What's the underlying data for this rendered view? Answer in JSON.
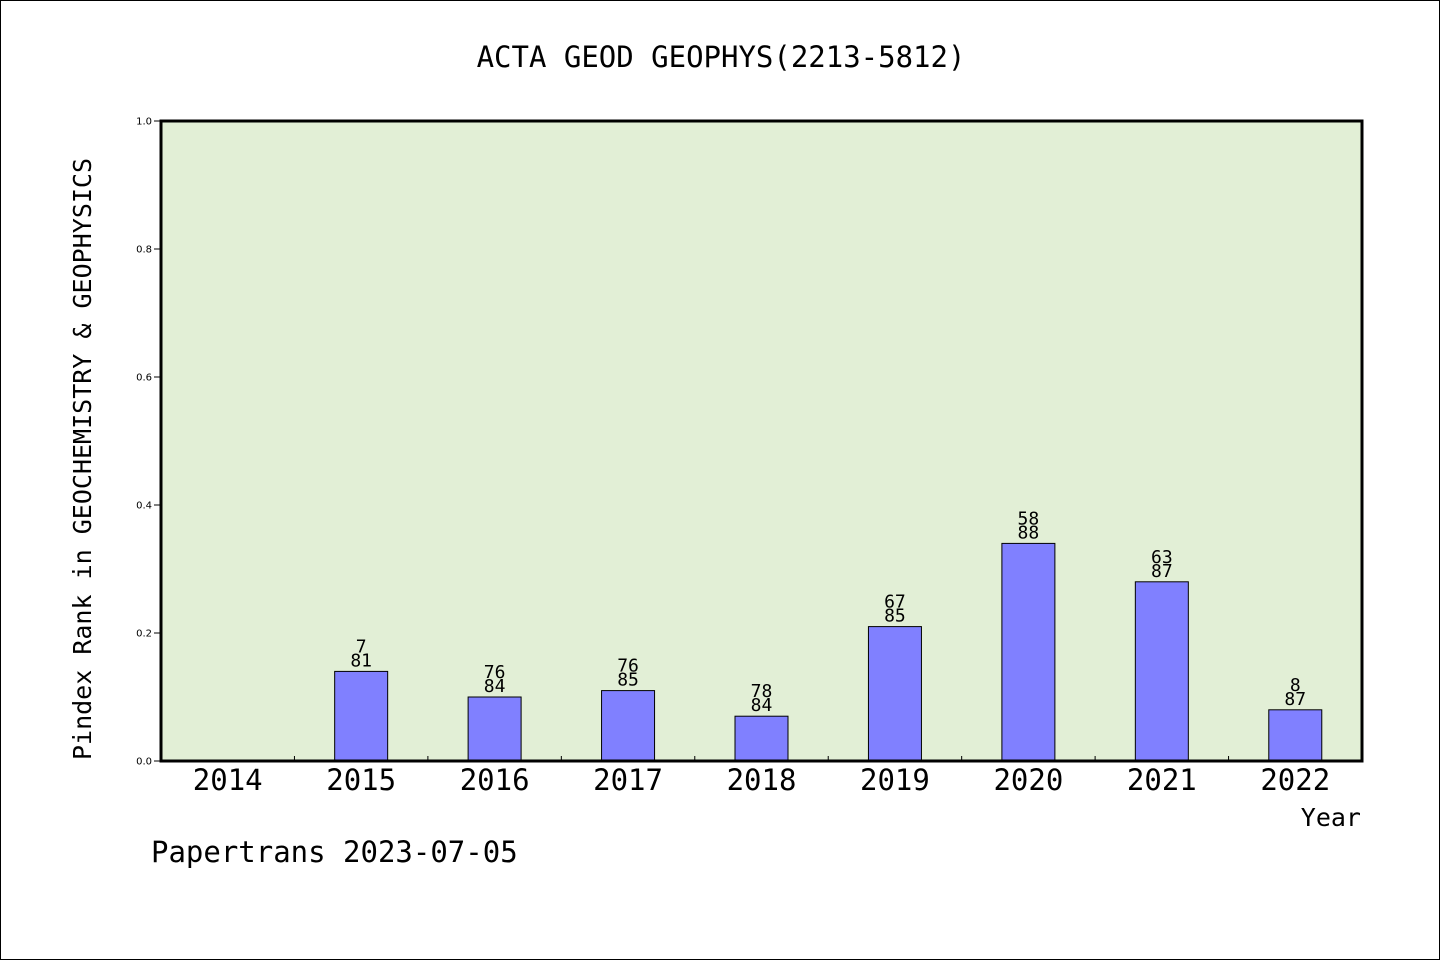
{
  "footer": "Papertrans 2023-07-05",
  "colors": {
    "plot_background": "#e2efd6",
    "bar_fill": "#8080ff",
    "axis": "#000000"
  },
  "chart_data": {
    "type": "bar",
    "title": "ACTA GEOD GEOPHYS(2213-5812)",
    "xlabel": "Year",
    "ylabel": "Pindex Rank in GEOCHEMISTRY & GEOPHYSICS",
    "ylim": [
      0,
      1.0
    ],
    "yticks": [
      "0.0",
      "0.2",
      "0.4",
      "0.6",
      "0.8",
      "1.0"
    ],
    "grid": false,
    "categories": [
      "2014",
      "2015",
      "2016",
      "2017",
      "2018",
      "2019",
      "2020",
      "2021",
      "2022"
    ],
    "values": [
      null,
      0.14,
      0.1,
      0.11,
      0.07,
      0.21,
      0.34,
      0.28,
      0.08
    ],
    "rank_labels": [
      null,
      "7",
      "76",
      "76",
      "78",
      "67",
      "58",
      "63",
      "8"
    ],
    "total_labels": [
      null,
      "81",
      "84",
      "85",
      "84",
      "85",
      "88",
      "87",
      "87"
    ]
  }
}
